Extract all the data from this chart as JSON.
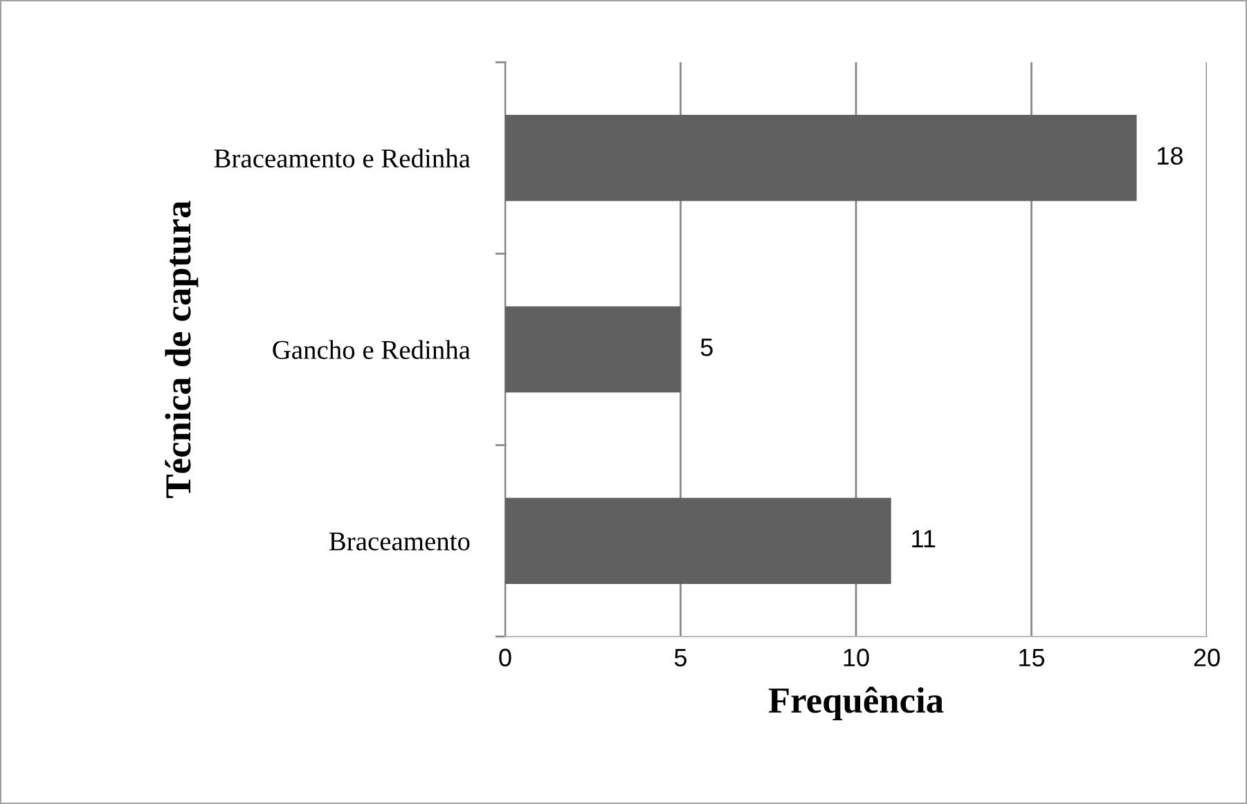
{
  "chart_data": {
    "type": "bar",
    "orientation": "horizontal",
    "categories": [
      "Braceamento e Redinha",
      "Gancho e Redinha",
      "Braceamento"
    ],
    "values": [
      18,
      5,
      11
    ],
    "color": "#606060",
    "xlim": [
      0,
      20
    ],
    "xticks": [
      0,
      5,
      10,
      15,
      20
    ],
    "grid": "x",
    "data_labels": true,
    "xlabel": "Frequência",
    "ylabel": "Técnica de captura"
  }
}
